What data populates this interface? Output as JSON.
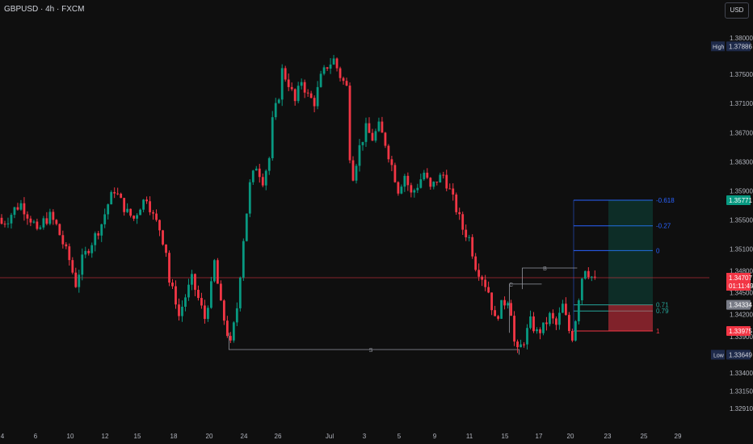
{
  "header": {
    "title": "GBPUSD · 4h · FXCM",
    "currency_button": "USD"
  },
  "chart_data": {
    "type": "candlestick",
    "title": "GBPUSD · 4h · FXCM",
    "symbol": "GBPUSD",
    "timeframe": "4h",
    "source": "FXCM",
    "ylim": [
      1.327,
      1.383
    ],
    "y_ticks": [
      "1.38000",
      "1.37500",
      "1.37100",
      "1.36700",
      "1.36300",
      "1.35900",
      "1.35500",
      "1.35100",
      "1.34800",
      "1.34500",
      "1.34200",
      "1.33900",
      "1.33400",
      "1.33150",
      "1.32910"
    ],
    "x_ticks": [
      "4",
      "6",
      "10",
      "12",
      "15",
      "18",
      "20",
      "24",
      "26",
      "Jul",
      "3",
      "5",
      "9",
      "11",
      "15",
      "17",
      "20",
      "23",
      "25",
      "29"
    ],
    "grid": false,
    "labels": {
      "high": {
        "tag": "High",
        "value": "1.37886"
      },
      "low": {
        "tag": "Low",
        "value": "1.33649"
      },
      "current_price": "1.34707",
      "countdown": "01:11:49",
      "entry_price": "1.34334",
      "stop_price": "1.33975",
      "target_price": "1.35771"
    },
    "fibonacci": [
      {
        "level": "-0.618",
        "price": 1.35771
      },
      {
        "level": "-0.27",
        "price": 1.3542
      },
      {
        "level": "0",
        "price": 1.3508
      },
      {
        "level": "0.71",
        "price": 1.34334
      },
      {
        "level": "0.79",
        "price": 1.3425
      },
      {
        "level": "1",
        "price": 1.33975
      }
    ],
    "annotations": [
      {
        "text": "S",
        "price": 1.3372
      },
      {
        "text": "C",
        "price": 1.3462
      },
      {
        "text": "B",
        "price": 1.3484
      }
    ],
    "price_path": [
      [
        0,
        1.3545
      ],
      [
        2,
        1.3552
      ],
      [
        4,
        1.3565
      ],
      [
        6,
        1.3572
      ],
      [
        8,
        1.3558
      ],
      [
        10,
        1.3545
      ],
      [
        11,
        1.353
      ],
      [
        13,
        1.3548
      ],
      [
        15,
        1.3555
      ],
      [
        17,
        1.3542
      ],
      [
        19,
        1.3518
      ],
      [
        21,
        1.3495
      ],
      [
        23,
        1.3462
      ],
      [
        25,
        1.3495
      ],
      [
        27,
        1.3512
      ],
      [
        29,
        1.3528
      ],
      [
        31,
        1.3545
      ],
      [
        33,
        1.3572
      ],
      [
        35,
        1.3592
      ],
      [
        37,
        1.3575
      ],
      [
        39,
        1.356
      ],
      [
        41,
        1.3552
      ],
      [
        43,
        1.357
      ],
      [
        45,
        1.3582
      ],
      [
        47,
        1.3555
      ],
      [
        49,
        1.3538
      ],
      [
        51,
        1.3508
      ],
      [
        52,
        1.3465
      ],
      [
        54,
        1.344
      ],
      [
        55,
        1.3418
      ],
      [
        57,
        1.3445
      ],
      [
        59,
        1.3468
      ],
      [
        61,
        1.3442
      ],
      [
        63,
        1.3415
      ],
      [
        65,
        1.3458
      ],
      [
        66,
        1.3492
      ],
      [
        68,
        1.3432
      ],
      [
        70,
        1.3395
      ],
      [
        71,
        1.3378
      ],
      [
        73,
        1.343
      ],
      [
        75,
        1.3525
      ],
      [
        77,
        1.3598
      ],
      [
        79,
        1.3625
      ],
      [
        81,
        1.3605
      ],
      [
        83,
        1.3635
      ],
      [
        84,
        1.3685
      ],
      [
        86,
        1.3722
      ],
      [
        87,
        1.3755
      ],
      [
        89,
        1.3738
      ],
      [
        91,
        1.3712
      ],
      [
        93,
        1.3742
      ],
      [
        95,
        1.372
      ],
      [
        97,
        1.3712
      ],
      [
        99,
        1.3745
      ],
      [
        101,
        1.3762
      ],
      [
        103,
        1.377
      ],
      [
        105,
        1.3748
      ],
      [
        107,
        1.3732
      ],
      [
        108,
        1.364
      ],
      [
        109,
        1.3612
      ],
      [
        111,
        1.365
      ],
      [
        113,
        1.3675
      ],
      [
        115,
        1.3662
      ],
      [
        117,
        1.3678
      ],
      [
        119,
        1.3656
      ],
      [
        121,
        1.3625
      ],
      [
        123,
        1.3592
      ],
      [
        125,
        1.3612
      ],
      [
        127,
        1.3585
      ],
      [
        129,
        1.3598
      ],
      [
        131,
        1.3615
      ],
      [
        133,
        1.3592
      ],
      [
        135,
        1.3605
      ],
      [
        137,
        1.3612
      ],
      [
        139,
        1.359
      ],
      [
        141,
        1.3565
      ],
      [
        143,
        1.3538
      ],
      [
        145,
        1.3525
      ],
      [
        147,
        1.3488
      ],
      [
        149,
        1.3472
      ],
      [
        151,
        1.3452
      ],
      [
        153,
        1.3412
      ],
      [
        155,
        1.3432
      ],
      [
        157,
        1.3442
      ],
      [
        158,
        1.3425
      ],
      [
        159,
        1.3382
      ],
      [
        160,
        1.3368
      ],
      [
        162,
        1.3385
      ],
      [
        164,
        1.341
      ],
      [
        166,
        1.3395
      ],
      [
        168,
        1.3402
      ],
      [
        170,
        1.3418
      ],
      [
        172,
        1.3405
      ],
      [
        174,
        1.3432
      ],
      [
        176,
        1.3398
      ],
      [
        177,
        1.339
      ],
      [
        178,
        1.3415
      ],
      [
        179,
        1.3445
      ],
      [
        180,
        1.3472
      ],
      [
        181,
        1.3485
      ],
      [
        182,
        1.3478
      ],
      [
        183,
        1.3472
      ],
      [
        184,
        1.3466
      ]
    ],
    "index_range": [
      0,
      220
    ]
  }
}
